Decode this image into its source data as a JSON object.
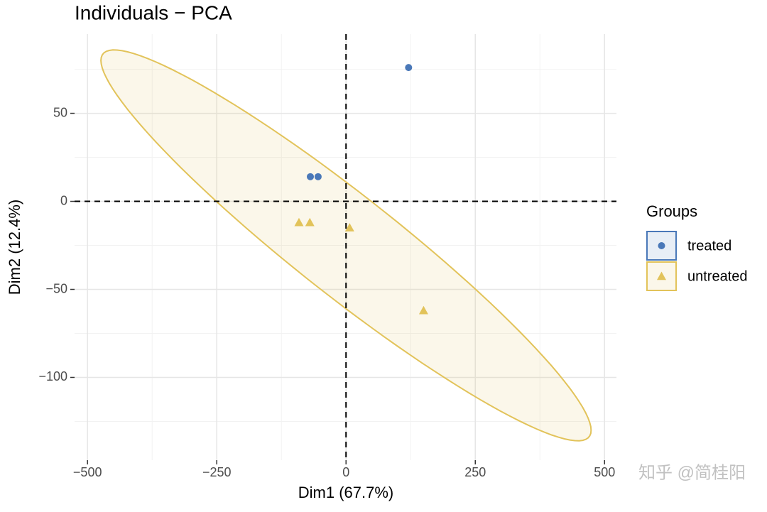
{
  "chart_data": {
    "type": "scatter",
    "title": "Individuals − PCA",
    "x_label": "Dim1 (67.7%)",
    "y_label": "Dim2 (12.4%)",
    "xlim": [
      -525,
      523
    ],
    "ylim": [
      -147,
      95
    ],
    "xticks": [
      {
        "value": -500,
        "label": "−500"
      },
      {
        "value": -250,
        "label": "−250"
      },
      0,
      250,
      500
    ],
    "yticks": [
      {
        "value": -100,
        "label": "−100"
      },
      {
        "value": -50,
        "label": "−50"
      },
      0,
      50
    ],
    "grid": true,
    "legend_title": "Groups",
    "legend_position": "right",
    "series": [
      {
        "name": "treated",
        "color": "#4a78b8",
        "marker": "circle",
        "x": [
          121,
          -69,
          -54
        ],
        "values": [
          76,
          14,
          14
        ]
      },
      {
        "name": "untreated",
        "color": "#e2c35a",
        "marker": "triangle",
        "x": [
          -91,
          -70,
          7,
          150
        ],
        "values": [
          -12,
          -12,
          -15,
          -62
        ],
        "ellipse": {
          "center": [
            0,
            -25
          ],
          "u": [
            474,
            -105
          ],
          "v": [
            0,
            36
          ]
        }
      }
    ],
    "watermark": "知乎 @简桂阳"
  }
}
